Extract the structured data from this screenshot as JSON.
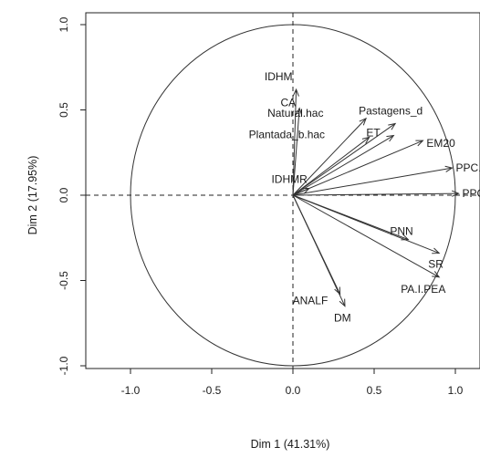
{
  "chart_data": {
    "type": "scatter",
    "subtype": "pca-correlation-circle",
    "title": "",
    "xlabel": "Dim 1 (41.31%)",
    "ylabel": "Dim 2 (17.95%)",
    "xlim": [
      -1.2,
      1.05
    ],
    "ylim": [
      -1.1,
      1.05
    ],
    "x_ticks": [
      -1.0,
      -0.5,
      0.0,
      0.5,
      1.0
    ],
    "y_ticks": [
      -1.0,
      -0.5,
      0.0,
      0.5,
      1.0
    ],
    "x_tick_labels": [
      "-1.0",
      "-0.5",
      "0.0",
      "0.5",
      "1.0"
    ],
    "y_tick_labels": [
      "-1.0",
      "-0.5",
      "0.0",
      "0.5",
      "1.0"
    ],
    "grid": false,
    "reference_lines": "dashed lines at x = 0 and y = 0",
    "unit_circle": true,
    "variables": [
      {
        "label": "IDHM",
        "x": 0.02,
        "y": 0.62
      },
      {
        "label": "CA",
        "x": 0.04,
        "y": 0.51
      },
      {
        "label": "Natural.hac",
        "x": 0.45,
        "y": 0.45
      },
      {
        "label": "Pastagens_d",
        "x": 0.63,
        "y": 0.42
      },
      {
        "label": "Plantada_b.hac",
        "x": 0.47,
        "y": 0.34
      },
      {
        "label": "ET",
        "x": 0.62,
        "y": 0.35
      },
      {
        "label": "EM20",
        "x": 0.8,
        "y": 0.32
      },
      {
        "label": "PPC.f",
        "x": 0.98,
        "y": 0.16
      },
      {
        "label": "IDHMR",
        "x": 0.1,
        "y": 0.04
      },
      {
        "label": "PPC.m",
        "x": 1.02,
        "y": 0.01
      },
      {
        "label": "PNN",
        "x": 0.71,
        "y": -0.26
      },
      {
        "label": "SR",
        "x": 0.9,
        "y": -0.34
      },
      {
        "label": "PA.I.PEA",
        "x": 0.9,
        "y": -0.48
      },
      {
        "label": "ANALF",
        "x": 0.29,
        "y": -0.58
      },
      {
        "label": "DM",
        "x": 0.32,
        "y": -0.65
      }
    ]
  }
}
